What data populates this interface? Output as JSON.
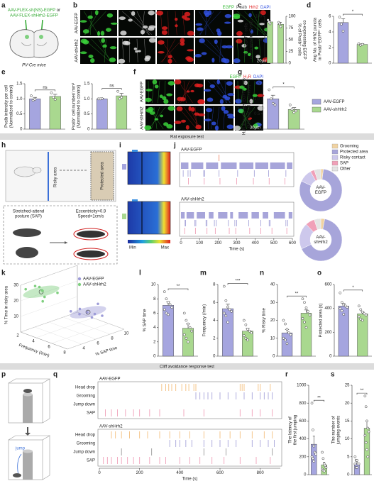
{
  "labels": [
    "a",
    "b",
    "c",
    "d",
    "e",
    "f",
    "g",
    "h",
    "i",
    "j",
    "k",
    "l",
    "m",
    "n",
    "o",
    "p",
    "q",
    "r",
    "s"
  ],
  "sections": [
    "Rat exposure test",
    "Cliff avoidance response test"
  ],
  "legend": {
    "names": [
      "AAV-EGFP",
      "AAV-shHrh2"
    ],
    "colors": [
      "#a5a5df",
      "#a9d88f"
    ]
  },
  "a": {
    "virus": [
      "AAV-FLEX-sh(NS)-EGFP",
      "or",
      "AAV-FLEX-shHrh2-EGFP"
    ],
    "mouse": "PV-Cre mice"
  },
  "b": {
    "channels": [
      "EGFP",
      "Pvalb",
      "Hrh2",
      "DAPI"
    ],
    "channel_colors": [
      "#2fb82f",
      "#555555",
      "#e02020",
      "#3050e0"
    ],
    "rows": [
      "AAV-EGFP",
      "AAV-shHrh2"
    ],
    "scale": "20μm"
  },
  "f": {
    "channels": [
      "EGFP",
      "H₂R",
      "DAPI"
    ],
    "channel_colors": [
      "#2fb82f",
      "#e02020",
      "#3050e0"
    ],
    "rows": [
      "AAV-EGFP",
      "AAV-shHrh2"
    ],
    "scale": "30μm"
  },
  "h": {
    "zones": [
      "Risky area",
      "Protected area"
    ],
    "posture": [
      "Stretched-attend",
      "posture (SAP)"
    ],
    "criteria": [
      "Eccentricity>0.9",
      "Speed<1cm/s"
    ]
  },
  "i": {
    "scale": [
      "Min",
      "Max"
    ]
  },
  "p": {
    "label": "jump"
  },
  "chart_data": [
    {
      "type": "bar",
      "ylabel": [
        "% of EGFP⁺ cells",
        "co-expressing Pvalb"
      ],
      "y2label": [
        "% of Pvalb⁺ cells",
        "co-expressing EGFP"
      ],
      "ylim": [
        0,
        100
      ],
      "yticks": [
        0,
        50,
        100
      ],
      "y2lim": [
        0,
        100
      ],
      "y2ticks": [
        0,
        25,
        50,
        75,
        100
      ],
      "value_axes": [
        "y",
        "y2"
      ],
      "values": [
        88,
        83
      ],
      "errors": [
        3,
        4
      ],
      "points": [
        [
          92,
          88,
          84
        ],
        [
          87,
          84,
          78
        ]
      ],
      "colors": [
        "#a9d88f",
        "#a9d88f"
      ]
    },
    {
      "type": "bar",
      "ylabel": [
        "Avg No. of Hrh2 puncta",
        "in Pvalb⁺EGFP⁺ cells"
      ],
      "ylim": [
        0,
        6
      ],
      "yticks": [
        0,
        2,
        4,
        6
      ],
      "values": [
        5.2,
        2.4
      ],
      "errors": [
        0.5,
        0.1
      ],
      "points": [
        [
          5.9,
          5.0,
          4.1
        ],
        [
          2.5,
          2.3,
          2.4
        ]
      ],
      "colors": [
        "#a5a5df",
        "#a9d88f"
      ],
      "significance": "*"
    },
    {
      "type": "bar",
      "ylabel": [
        "Pvalb intensity per cell",
        "(Normalized to control)"
      ],
      "ylim": [
        0,
        1.5
      ],
      "yticks": [
        0,
        0.5,
        {
          "value": 1,
          "label": "1.0"
        },
        1.5
      ],
      "values": [
        1.0,
        1.08
      ],
      "errors": [
        0.05,
        0.07
      ],
      "points": [
        [
          1.1,
          0.95,
          0.98
        ],
        [
          1.2,
          1.05,
          0.98
        ]
      ],
      "colors": [
        "#a5a5df",
        "#a9d88f"
      ],
      "significance": "ns"
    },
    {
      "type": "bar",
      "ylabel": [
        "Pvalb⁺ cell number/ mm²",
        "(Normalized to control)"
      ],
      "ylim": [
        0,
        1.5
      ],
      "yticks": [
        0,
        0.5,
        {
          "value": 1,
          "label": "1.0"
        },
        1.5
      ],
      "values": [
        1.0,
        1.1
      ],
      "errors": [
        0.02,
        0.08
      ],
      "points": [
        [
          1.0,
          1.0,
          1.01
        ],
        [
          1.25,
          1.0,
          1.05
        ]
      ],
      "colors": [
        "#a5a5df",
        "#a9d88f"
      ],
      "significance": "ns"
    },
    {
      "type": "bar",
      "ylabel": [
        "H₂R intensity per EGFP⁺ cells",
        "(Normalized to control)"
      ],
      "ylim": [
        0,
        1.5
      ],
      "yticks": [
        0,
        0.5,
        {
          "value": 1,
          "label": "1.0"
        },
        1.5
      ],
      "values": [
        1.0,
        0.65
      ],
      "errors": [
        0.12,
        0.06
      ],
      "points": [
        [
          1.3,
          1.0,
          0.85,
          0.8
        ],
        [
          0.8,
          0.65,
          0.55,
          0.6
        ]
      ],
      "colors": [
        "#a5a5df",
        "#a9d88f"
      ],
      "significance": "*"
    },
    {
      "type": "raster",
      "xlim": [
        0,
        600
      ],
      "xticks": [
        0,
        100,
        200,
        300,
        400,
        500,
        600
      ],
      "xlabel": "Time (s)",
      "groups": [
        {
          "title": "AAV-EGFP",
          "rows": [
            {
              "color": "#f08a6a",
              "events": [
                205
              ]
            },
            {
              "color": "#a7a5da",
              "intervals": [
                [
                  0,
                  40
                ],
                [
                  55,
                  120
                ],
                [
                  135,
                  200
                ],
                [
                  215,
                  300
                ],
                [
                  315,
                  390
                ],
                [
                  400,
                  470
                ],
                [
                  480,
                  560
                ],
                [
                  570,
                  600
                ]
              ]
            },
            {
              "color": "#a7a5da",
              "events": [
                12,
                38,
                50,
                122,
                128,
                205,
                305,
                395,
                472,
                565
              ]
            },
            {
              "color": "#f0a0b8",
              "events": [
                40,
                125,
                210,
                300,
                390,
                475,
                560
              ]
            }
          ]
        },
        {
          "title": "AAV-shHrh2",
          "rows": [
            {
              "color": "#f08a6a",
              "events": []
            },
            {
              "color": "#a7a5da",
              "intervals": [
                [
                  0,
                  20
                ],
                [
                  30,
                  70
                ],
                [
                  85,
                  130
                ],
                [
                  150,
                  175
                ],
                [
                  200,
                  250
                ],
                [
                  265,
                  280
                ],
                [
                  310,
                  360
                ],
                [
                  380,
                  420
                ],
                [
                  440,
                  470
                ],
                [
                  500,
                  560
                ],
                [
                  580,
                  600
                ]
              ]
            },
            {
              "color": "#a7a5da",
              "events": [
                22,
                25,
                75,
                80,
                135,
                140,
                180,
                190,
                255,
                290,
                300,
                365,
                430,
                475,
                480,
                565,
                575
              ]
            },
            {
              "color": "#f0a0b8",
              "events": [
                20,
                78,
                140,
                185,
                260,
                295,
                370,
                430,
                490,
                570
              ]
            }
          ]
        }
      ]
    },
    {
      "type": "pie",
      "names": [
        "Grooming",
        "Protected area",
        "Risky contact",
        "SAP",
        "Other"
      ],
      "colors": [
        "#f1d3a2",
        "#a7a5da",
        "#cdc8ec",
        "#f0a0b8",
        "#e4e4e4"
      ],
      "groups": [
        {
          "label": [
            "AAV-",
            "EGFP"
          ],
          "values": [
            2,
            80,
            10,
            3,
            5
          ]
        },
        {
          "label": [
            "AAV-",
            "shHrh2"
          ],
          "values": [
            3,
            65,
            20,
            7,
            5
          ]
        }
      ]
    },
    {
      "type": "scatter",
      "xlabel": "Frequency (/min)",
      "ylabel": "% SAP time",
      "zlabel": "% Time in risky area",
      "xlim": [
        2,
        8
      ],
      "ylim": [
        2,
        10
      ],
      "zlim": [
        0,
        30
      ],
      "xticks": [
        2,
        4,
        6,
        8
      ],
      "yticks": [
        4,
        6,
        8,
        10
      ],
      "zticks": [
        10,
        20,
        30
      ],
      "series": [
        {
          "name": "AAV-EGFP",
          "color": "#9d9bd8",
          "points": [
            [
              6,
              7,
              12
            ],
            [
              7,
              8,
              10
            ],
            [
              5.5,
              6.5,
              14
            ],
            [
              6.5,
              7.5,
              11
            ],
            [
              5,
              7,
              9
            ],
            [
              7.5,
              6,
              13
            ],
            [
              6,
              8.5,
              15
            ],
            [
              4.8,
              6,
              12
            ]
          ]
        },
        {
          "name": "AAV-shHrh2",
          "color": "#7fcf7f",
          "points": [
            [
              3,
              4,
              25
            ],
            [
              2.5,
              3.5,
              28
            ],
            [
              2,
              5,
              22
            ],
            [
              3.5,
              3,
              30
            ],
            [
              2.8,
              4.5,
              20
            ],
            [
              4,
              5,
              24
            ],
            [
              2.2,
              2.5,
              27
            ],
            [
              3.2,
              3.8,
              19
            ]
          ]
        }
      ]
    },
    {
      "type": "bar",
      "ylabel": [
        "% SAP time"
      ],
      "ylim": [
        0,
        10
      ],
      "yticks": [
        0,
        2,
        4,
        6,
        8,
        10
      ],
      "values": [
        7.1,
        3.9
      ],
      "errors": [
        0.5,
        0.6
      ],
      "points": [
        [
          9.0,
          8.0,
          7.5,
          7.2,
          6.8,
          6.5,
          6.0,
          5.8
        ],
        [
          6.0,
          5.0,
          4.5,
          4.0,
          3.5,
          3.0,
          2.5,
          2.0
        ]
      ],
      "colors": [
        "#a5a5df",
        "#a9d88f"
      ],
      "significance": "**"
    },
    {
      "type": "bar",
      "ylabel": [
        "Frequency (/min)"
      ],
      "ylim": [
        0,
        8
      ],
      "yticks": [
        0,
        2,
        4,
        6,
        8
      ],
      "values": [
        5.3,
        2.8
      ],
      "errors": [
        0.5,
        0.3
      ],
      "points": [
        [
          7.8,
          6.2,
          5.5,
          5.2,
          5.0,
          4.8,
          4.5,
          3.8
        ],
        [
          4.0,
          3.5,
          3.0,
          2.8,
          2.6,
          2.3,
          2.0,
          1.8
        ]
      ],
      "colors": [
        "#a5a5df",
        "#a9d88f"
      ],
      "significance": "***"
    },
    {
      "type": "bar",
      "ylabel": [
        "% Risky time"
      ],
      "ylim": [
        0,
        40
      ],
      "yticks": [
        0,
        10,
        20,
        30,
        40
      ],
      "values": [
        13,
        24
      ],
      "errors": [
        1.8,
        1.8
      ],
      "points": [
        [
          20,
          18,
          15,
          13,
          12,
          10,
          9,
          7
        ],
        [
          32,
          30,
          27,
          25,
          23,
          21,
          19,
          16
        ]
      ],
      "colors": [
        "#a5a5df",
        "#a9d88f"
      ],
      "significance": "**"
    },
    {
      "type": "bar",
      "ylabel": [
        "Protected area (s)"
      ],
      "ylim": [
        0,
        600
      ],
      "yticks": [
        0,
        200,
        400,
        600
      ],
      "values": [
        420,
        355
      ],
      "errors": [
        20,
        15
      ],
      "points": [
        [
          530,
          450,
          430,
          420,
          410,
          400,
          380,
          350
        ],
        [
          420,
          390,
          370,
          355,
          345,
          330,
          310,
          300
        ]
      ],
      "colors": [
        "#a5a5df",
        "#a9d88f"
      ],
      "significance": "*"
    },
    {
      "type": "raster",
      "xlim": [
        0,
        900
      ],
      "xticks": [
        0,
        200,
        400,
        600,
        800
      ],
      "xlabel": "Time (s)",
      "row_names": [
        "Head drop",
        "Grooming",
        "Jump down",
        "SAP"
      ],
      "groups": [
        {
          "title": "AAV-EGFP",
          "rows": [
            {
              "color": "#f3bf7e",
              "events": [
                310,
                330,
                345,
                360,
                380,
                410,
                430,
                445,
                470,
                480,
                700,
                710,
                720,
                790,
                800,
                850
              ]
            },
            {
              "color": "#a7a5da",
              "events": [
                480,
                500,
                520,
                540,
                560,
                600,
                640,
                680,
                720,
                760,
                800,
                820,
                840,
                860
              ]
            },
            {
              "color": "#999999",
              "events": []
            },
            {
              "color": "#f0a0b8",
              "events": [
                30,
                60,
                90,
                130,
                170,
                200,
                250,
                300,
                420,
                520,
                700,
                760,
                800,
                860
              ]
            }
          ]
        },
        {
          "title": "AAV-shHrh2",
          "rows": [
            {
              "color": "#f3bf7e",
              "events": [
                60,
                80,
                110,
                150,
                200,
                240,
                300,
                350,
                400,
                450,
                520,
                600,
                650,
                700,
                760,
                820,
                860
              ]
            },
            {
              "color": "#a7a5da",
              "events": [
                350,
                380,
                400,
                430,
                460,
                520,
                560,
                600,
                640,
                680,
                760,
                800,
                840,
                870
              ]
            },
            {
              "color": "#999999",
              "events": [
                110,
                260,
                520,
                630,
                860
              ]
            },
            {
              "color": "#f0a0b8",
              "events": [
                20,
                40,
                60,
                90,
                110,
                140,
                170,
                200,
                250,
                300,
                330,
                400,
                450,
                500,
                560,
                620,
                700,
                780,
                850
              ]
            }
          ]
        }
      ]
    },
    {
      "type": "bar",
      "ylabel": [
        "The latency of",
        "the first jumping"
      ],
      "ylim": [
        0,
        1000
      ],
      "yticks": [
        0,
        200,
        400,
        600,
        800,
        1000
      ],
      "values": [
        340,
        110
      ],
      "errors": [
        90,
        30
      ],
      "points": [
        [
          800,
          500,
          320,
          250,
          230,
          200,
          180,
          150
        ],
        [
          250,
          180,
          120,
          100,
          80,
          60,
          50,
          40
        ]
      ],
      "colors": [
        "#a5a5df",
        "#a9d88f"
      ],
      "significance": "**"
    },
    {
      "type": "bar",
      "ylabel": [
        "The number of",
        "jumping events"
      ],
      "ylim": [
        0,
        25
      ],
      "yticks": [
        0,
        5,
        10,
        15,
        20,
        25
      ],
      "values": [
        3.2,
        13
      ],
      "errors": [
        0.6,
        2.0
      ],
      "points": [
        [
          5,
          4,
          4,
          3,
          3,
          3,
          2,
          2
        ],
        [
          22,
          19,
          15,
          13,
          12,
          11,
          9,
          7,
          5
        ]
      ],
      "colors": [
        "#a5a5df",
        "#a9d88f"
      ],
      "significance": "**"
    }
  ]
}
